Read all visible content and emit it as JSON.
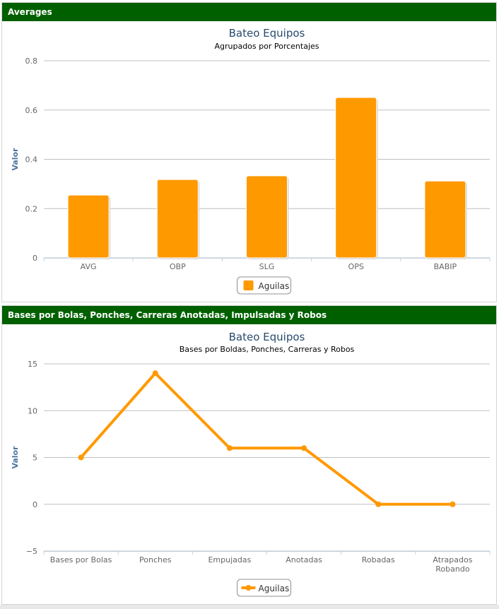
{
  "panels": [
    {
      "header": "Averages"
    },
    {
      "header": "Bases por Bolas, Ponches, Carreras Anotadas, Impulsadas y Robos"
    }
  ],
  "colors": {
    "header_bg": "#006000",
    "series": "#ff9900",
    "grid": "#c0c0c0",
    "title": "#274b6d",
    "axis_title": "#4d759e"
  },
  "chart_data": [
    {
      "type": "bar",
      "title": "Bateo Equipos",
      "subtitle": "Agrupados por Porcentajes",
      "xlabel": "",
      "ylabel": "Valor",
      "categories": [
        "AVG",
        "OBP",
        "SLG",
        "OPS",
        "BABIP"
      ],
      "series": [
        {
          "name": "Aguilas",
          "values": [
            0.255,
            0.318,
            0.333,
            0.651,
            0.312
          ]
        }
      ],
      "ylim": [
        0,
        0.8
      ],
      "yticks": [
        0,
        0.2,
        0.4,
        0.6,
        0.8
      ],
      "ytick_labels": [
        "0",
        "0.2",
        "0.4",
        "0.6",
        "0.8"
      ],
      "grid": true,
      "legend_position": "bottom-center"
    },
    {
      "type": "line",
      "title": "Bateo Equipos",
      "subtitle": "Bases por Boldas, Ponches, Carreras y Robos",
      "xlabel": "",
      "ylabel": "Valor",
      "categories": [
        "Bases por Bolas",
        "Ponches",
        "Empujadas",
        "Anotadas",
        "Robadas",
        "Atrapados Robando"
      ],
      "series": [
        {
          "name": "Aguilas",
          "values": [
            5,
            14,
            6,
            6,
            0,
            0
          ]
        }
      ],
      "ylim": [
        -5,
        15
      ],
      "yticks": [
        -5,
        0,
        5,
        10,
        15
      ],
      "ytick_labels": [
        "−5",
        "0",
        "5",
        "10",
        "15"
      ],
      "grid": true,
      "legend_position": "bottom-center"
    }
  ]
}
